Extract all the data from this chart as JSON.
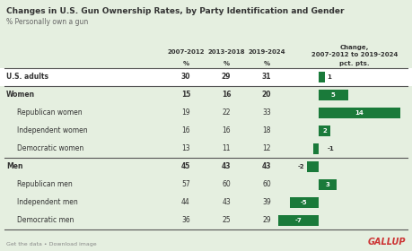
{
  "title": "Changes in U.S. Gun Ownership Rates, by Party Identification and Gender",
  "subtitle": "% Personally own a gun",
  "background_color": "#e5efe0",
  "text_color": "#333333",
  "bar_color": "#1a7a3a",
  "col_headers": [
    "2007-2012",
    "2013-2018",
    "2019-2024"
  ],
  "change_header_line1": "Change,",
  "change_header_line2": "2007-2012 to 2019-2024",
  "rows": [
    {
      "label": "U.S. adults",
      "bold": true,
      "white_bg": true,
      "vals": [
        30,
        29,
        31
      ],
      "change": 1
    },
    {
      "label": "Women",
      "bold": true,
      "white_bg": false,
      "vals": [
        15,
        16,
        20
      ],
      "change": 5
    },
    {
      "label": "Republican women",
      "bold": false,
      "white_bg": false,
      "vals": [
        19,
        22,
        33
      ],
      "change": 14
    },
    {
      "label": "Independent women",
      "bold": false,
      "white_bg": false,
      "vals": [
        16,
        16,
        18
      ],
      "change": 2
    },
    {
      "label": "Democratic women",
      "bold": false,
      "white_bg": false,
      "vals": [
        13,
        11,
        12
      ],
      "change": -1
    },
    {
      "label": "Men",
      "bold": true,
      "white_bg": false,
      "vals": [
        45,
        43,
        43
      ],
      "change": -2
    },
    {
      "label": "Republican men",
      "bold": false,
      "white_bg": false,
      "vals": [
        57,
        60,
        60
      ],
      "change": 3
    },
    {
      "label": "Independent men",
      "bold": false,
      "white_bg": false,
      "vals": [
        44,
        43,
        39
      ],
      "change": -5
    },
    {
      "label": "Democratic men",
      "bold": false,
      "white_bg": false,
      "vals": [
        36,
        25,
        29
      ],
      "change": -7
    }
  ],
  "separator_before": [
    0,
    1,
    5
  ],
  "footer_left": "Get the data • Download image",
  "footer_right": "GALLUP",
  "gallup_color": "#cc3333"
}
